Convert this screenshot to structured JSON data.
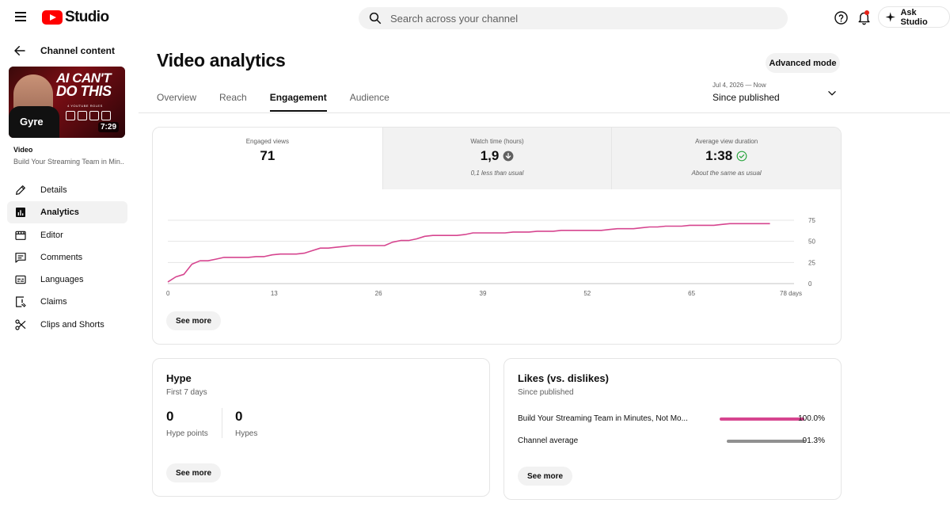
{
  "header": {
    "logo_text": "Studio",
    "search_placeholder": "Search across your channel",
    "ask_label": "Ask Studio"
  },
  "sidebar": {
    "back_label": "Channel content",
    "thumbnail": {
      "headline_line1": "AI CAN'T",
      "headline_line2": "DO THIS",
      "subtitle": "4 YOUTUBE ROLES",
      "brand": "Gyre",
      "duration": "7:29"
    },
    "video_type": "Video",
    "video_title": "Build Your Streaming Team in Min...",
    "items": [
      {
        "label": "Details",
        "icon": "pencil-icon"
      },
      {
        "label": "Analytics",
        "icon": "analytics-icon"
      },
      {
        "label": "Editor",
        "icon": "editor-icon"
      },
      {
        "label": "Comments",
        "icon": "comments-icon"
      },
      {
        "label": "Languages",
        "icon": "languages-icon"
      },
      {
        "label": "Claims",
        "icon": "claims-icon"
      },
      {
        "label": "Clips and Shorts",
        "icon": "scissors-icon"
      }
    ]
  },
  "main": {
    "title": "Video analytics",
    "advanced_label": "Advanced mode",
    "tabs": [
      {
        "label": "Overview"
      },
      {
        "label": "Reach"
      },
      {
        "label": "Engagement"
      },
      {
        "label": "Audience"
      }
    ],
    "date": {
      "range": "Jul 4, 2026 — Now",
      "value": "Since published"
    },
    "metrics": [
      {
        "label": "Engaged views",
        "value": "71",
        "note": ""
      },
      {
        "label": "Watch time (hours)",
        "value": "1,9",
        "note": "0,1 less than usual"
      },
      {
        "label": "Average view duration",
        "value": "1:38",
        "note": "About the same as usual"
      }
    ],
    "see_more": "See more"
  },
  "chart_data": {
    "type": "line",
    "x_ticks": [
      "0",
      "13",
      "26",
      "39",
      "52",
      "65",
      "78 days"
    ],
    "y_ticks": [
      "0",
      "25",
      "50",
      "75"
    ],
    "xlim": [
      0,
      78
    ],
    "ylim": [
      0,
      75
    ],
    "line_color": "#d6458f",
    "grid": true,
    "x": [
      0,
      1,
      2,
      3,
      4,
      5,
      6,
      7,
      8,
      9,
      10,
      11,
      12,
      13,
      14,
      15,
      16,
      17,
      18,
      19,
      20,
      21,
      22,
      23,
      24,
      25,
      26,
      27,
      28,
      29,
      30,
      31,
      32,
      33,
      34,
      35,
      36,
      37,
      38,
      39,
      40,
      41,
      42,
      43,
      44,
      45,
      46,
      47,
      48,
      49,
      50,
      51,
      52,
      53,
      54,
      55,
      56,
      57,
      58,
      59,
      60,
      61,
      62,
      63,
      64,
      65,
      66,
      67,
      68,
      69,
      70,
      71,
      72,
      73,
      74,
      75
    ],
    "y": [
      2,
      8,
      11,
      23,
      27,
      27,
      29,
      31,
      31,
      31,
      31,
      32,
      32,
      34,
      35,
      35,
      35,
      36,
      39,
      42,
      42,
      43,
      44,
      45,
      45,
      45,
      45,
      45,
      49,
      51,
      51,
      53,
      56,
      57,
      57,
      57,
      57,
      58,
      60,
      60,
      60,
      60,
      60,
      61,
      61,
      61,
      62,
      62,
      62,
      63,
      63,
      63,
      63,
      63,
      63,
      64,
      65,
      65,
      65,
      66,
      67,
      67,
      68,
      68,
      68,
      69,
      69,
      69,
      69,
      70,
      71,
      71,
      71,
      71,
      71,
      71
    ]
  },
  "hype": {
    "title": "Hype",
    "subtitle": "First 7 days",
    "stats": [
      {
        "value": "0",
        "label": "Hype points"
      },
      {
        "value": "0",
        "label": "Hypes"
      }
    ]
  },
  "likes": {
    "title": "Likes (vs. dislikes)",
    "subtitle": "Since published",
    "rows": [
      {
        "label": "Build Your Streaming Team in Minutes, Not Mo...",
        "value": 100.0,
        "display": "100.0%",
        "color": "#d6458f"
      },
      {
        "label": "Channel average",
        "value": 91.3,
        "display": "91.3%",
        "color": "#909090"
      }
    ]
  }
}
